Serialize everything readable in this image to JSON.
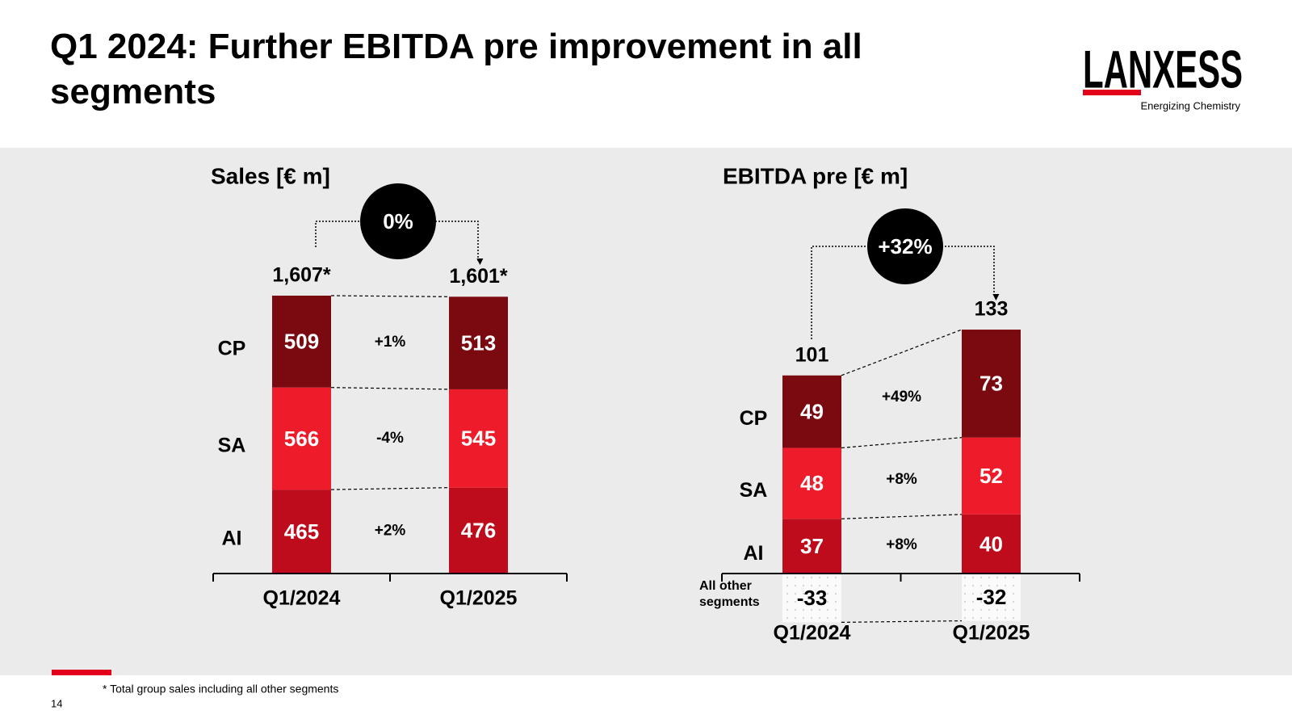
{
  "title": "Q1 2024: Further EBITDA pre improvement in all segments",
  "logo": {
    "name": "LANXESS",
    "tagline": "Energizing Chemistry"
  },
  "footnote": "* Total group sales including all other segments",
  "page_number": "14",
  "chart_data": [
    {
      "type": "stacked_bar",
      "title": "Sales [€ m]",
      "categories": [
        "Q1/2024",
        "Q1/2025"
      ],
      "series": [
        {
          "name": "AI",
          "color": "#bf0c1c",
          "values": [
            465,
            476
          ],
          "change": "+2%"
        },
        {
          "name": "SA",
          "color": "#ee1c2b",
          "values": [
            566,
            545
          ],
          "change": "-4%"
        },
        {
          "name": "CP",
          "color": "#7b0a10",
          "values": [
            509,
            513
          ],
          "change": "+1%"
        }
      ],
      "totals": {
        "values": [
          1607,
          1601
        ],
        "value_labels": [
          "1,607*",
          "1,601*"
        ]
      },
      "change": "0%"
    },
    {
      "type": "stacked_bar",
      "title": "EBITDA pre [€ m]",
      "categories": [
        "Q1/2024",
        "Q1/2025"
      ],
      "series": [
        {
          "name": "AI",
          "color": "#bf0c1c",
          "values": [
            37,
            40
          ],
          "change": "+8%"
        },
        {
          "name": "SA",
          "color": "#ee1c2b",
          "values": [
            48,
            52
          ],
          "change": "+8%"
        },
        {
          "name": "CP",
          "color": "#7b0a10",
          "values": [
            49,
            73
          ],
          "change": "+49%"
        },
        {
          "name": "All other segments",
          "color": "#f7f7f7",
          "values": [
            -33,
            -32
          ]
        }
      ],
      "totals": {
        "values": [
          101,
          133
        ]
      },
      "change": "+32%"
    }
  ]
}
